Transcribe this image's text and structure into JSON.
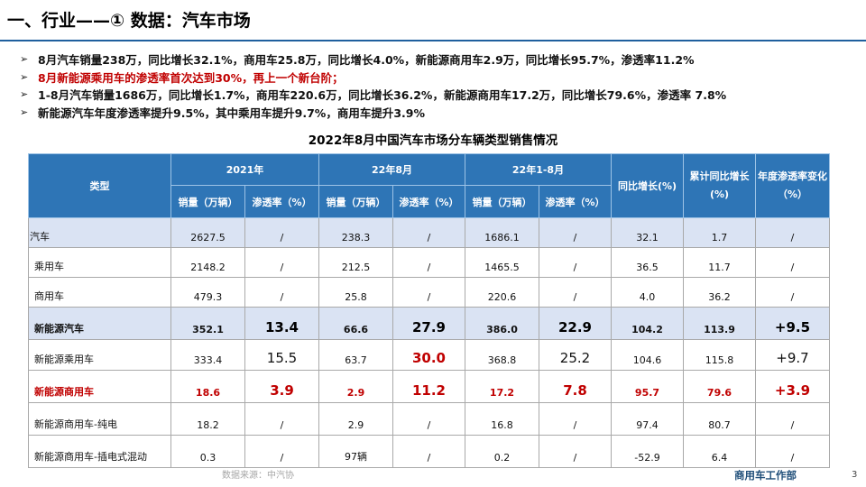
{
  "header": {
    "title": "一、行业——① 数据：汽车市场"
  },
  "bullets": {
    "mark": "➢",
    "items": [
      "8月汽车销量238万，同比增长32.1%，商用车25.8万，同比增长4.0%，新能源商用车2.9万，同比增长95.7%，渗透率11.2%",
      "8月新能源乘用车的渗透率首次达到30%，再上一个新台阶；",
      "1-8月汽车销量1686万，同比增长1.7%，商用车220.6万，同比增长36.2%，新能源商用车17.2万，同比增长79.6%，渗透率 7.8%",
      "新能源汽车年度渗透率提升9.5%，其中乘用车提升9.7%，商用车提升3.9%"
    ]
  },
  "table": {
    "title": "2022年8月中国汽车市场分车辆类型销售情况",
    "headers": {
      "type": "类型",
      "group_2021": "2021年",
      "group_aug": "22年8月",
      "group_ytd": "22年1-8月",
      "yoy": "同比增长(%)",
      "cum_yoy": "累计同比增长(%)",
      "pen_change": "年度渗透率变化（%）",
      "sales": "销量（万辆）",
      "penetration": "渗透率（%）"
    },
    "rows": [
      {
        "name": "汽车",
        "s2021": "2627.5",
        "p2021": "/",
        "saug": "238.3",
        "paug": "/",
        "sytd": "1686.1",
        "pytd": "/",
        "yoy": "32.1",
        "cum": "1.7",
        "chg": "/"
      },
      {
        "name": "乘用车",
        "s2021": "2148.2",
        "p2021": "/",
        "saug": "212.5",
        "paug": "/",
        "sytd": "1465.5",
        "pytd": "/",
        "yoy": "36.5",
        "cum": "11.7",
        "chg": "/"
      },
      {
        "name": "商用车",
        "s2021": "479.3",
        "p2021": "/",
        "saug": "25.8",
        "paug": "/",
        "sytd": "220.6",
        "pytd": "/",
        "yoy": "4.0",
        "cum": "36.2",
        "chg": "/"
      },
      {
        "name": "新能源汽车",
        "s2021": "352.1",
        "p2021": "13.4",
        "saug": "66.6",
        "paug": "27.9",
        "sytd": "386.0",
        "pytd": "22.9",
        "yoy": "104.2",
        "cum": "113.9",
        "chg": "+9.5"
      },
      {
        "name": "新能源乘用车",
        "s2021": "333.4",
        "p2021": "15.5",
        "saug": "63.7",
        "paug": "30.0",
        "sytd": "368.8",
        "pytd": "25.2",
        "yoy": "104.6",
        "cum": "115.8",
        "chg": "+9.7"
      },
      {
        "name": "新能源商用车",
        "s2021": "18.6",
        "p2021": "3.9",
        "saug": "2.9",
        "paug": "11.2",
        "sytd": "17.2",
        "pytd": "7.8",
        "yoy": "95.7",
        "cum": "79.6",
        "chg": "+3.9"
      },
      {
        "name": "新能源商用车-纯电",
        "s2021": "18.2",
        "p2021": "/",
        "saug": "2.9",
        "paug": "/",
        "sytd": "16.8",
        "pytd": "/",
        "yoy": "97.4",
        "cum": "80.7",
        "chg": "/"
      },
      {
        "name": "新能源商用车-插电式混动",
        "s2021": "0.3",
        "p2021": "/",
        "saug": "97辆",
        "paug": "/",
        "sytd": "0.2",
        "pytd": "/",
        "yoy": "-52.9",
        "cum": "6.4",
        "chg": "/"
      }
    ]
  },
  "footer": {
    "source": "数据来源：中汽协",
    "org": "商用车工作部",
    "page": "3"
  },
  "colors": {
    "header_bg": "#2e75b6",
    "highlight_row_bg": "#dae3f3",
    "accent_red": "#c00000",
    "title_rule": "#1f5f9e"
  }
}
